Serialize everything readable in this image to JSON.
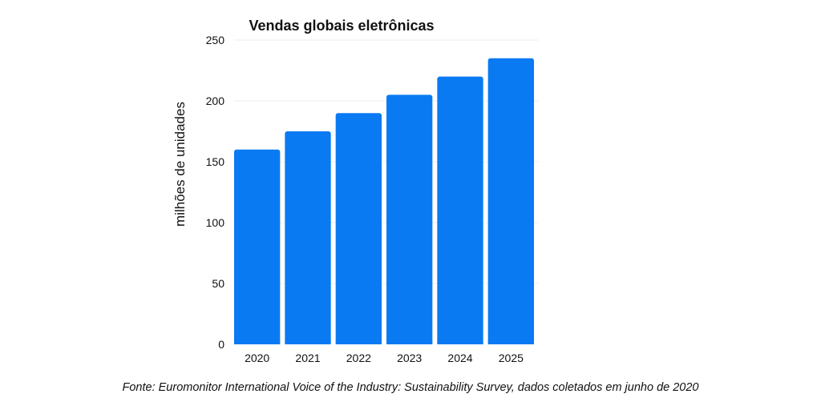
{
  "chart_data": {
    "type": "bar",
    "title": "Vendas globais eletrônicas",
    "xlabel": "",
    "ylabel": "milhões de unidades",
    "categories": [
      "2020",
      "2021",
      "2022",
      "2023",
      "2024",
      "2025"
    ],
    "values": [
      160,
      175,
      190,
      205,
      220,
      235
    ],
    "ylim": [
      0,
      250
    ],
    "yticks": [
      0,
      50,
      100,
      150,
      200,
      250
    ],
    "grid": true,
    "bar_color": "#0a7af3"
  },
  "source_note": "Fonte: Euromonitor International Voice of the Industry: Sustainability Survey, dados coletados em junho de 2020"
}
